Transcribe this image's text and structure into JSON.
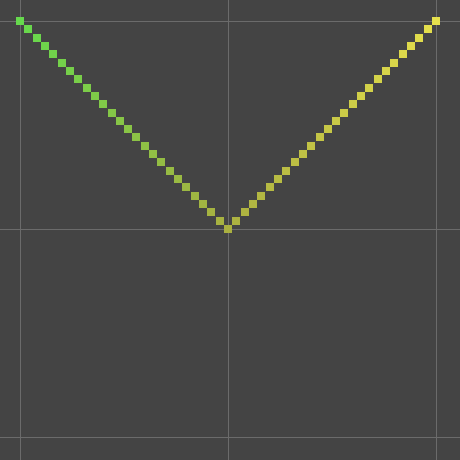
{
  "canvas": {
    "background": "#444444",
    "grid_color": "#6b6b6b",
    "start_color": "#66d94d",
    "end_color": "#e5e04d",
    "mid_color": "#aab040"
  },
  "grid": {
    "columns": 2,
    "rows": 2
  },
  "curve": {
    "shape": "v",
    "steps_per_arm": 25,
    "start_level": 1.0,
    "min_level": 0.0,
    "end_level": 1.0
  }
}
